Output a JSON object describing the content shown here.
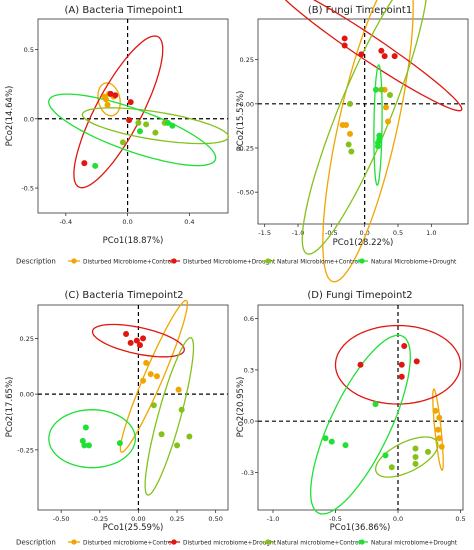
{
  "colors": {
    "disturbed_control": "#f0a500",
    "disturbed_drought": "#e0160f",
    "natural_control": "#84c21a",
    "natural_drought": "#1fe035"
  },
  "chart_data": [
    {
      "type": "scatter",
      "title": "(A) Bacteria Timepoint1",
      "xlabel": "PCo1(18.87%)",
      "ylabel": "PCo2(14.64%)",
      "xlim": [
        -0.58,
        0.65
      ],
      "ylim": [
        -0.68,
        0.72
      ],
      "xticks": [
        -0.4,
        0,
        0.4
      ],
      "xtick_labels": [
        "-0.4",
        "0.0",
        "0.4"
      ],
      "yticks": [
        -0.5,
        0,
        0.5
      ],
      "ytick_labels": [
        "-0.5",
        "0.0",
        "0.5"
      ],
      "series": [
        {
          "key": "disturbed_control",
          "points": [
            [
              -0.14,
              0.14
            ],
            [
              -0.12,
              0.18
            ],
            [
              -0.09,
              0.16
            ],
            [
              -0.13,
              0.1
            ],
            [
              -0.15,
              0.16
            ]
          ],
          "ellipse": {
            "cx": -0.12,
            "cy": 0.14,
            "rx": 0.07,
            "ry": 0.12,
            "angle": 10
          }
        },
        {
          "key": "disturbed_drought",
          "points": [
            [
              -0.11,
              0.18
            ],
            [
              -0.08,
              0.17
            ],
            [
              0.02,
              0.12
            ],
            [
              0.01,
              -0.01
            ],
            [
              -0.28,
              -0.32
            ]
          ],
          "ellipse": {
            "cx": -0.06,
            "cy": 0.05,
            "rx": 0.6,
            "ry": 0.15,
            "angle": 65
          }
        },
        {
          "key": "natural_control",
          "points": [
            [
              0.07,
              -0.03
            ],
            [
              0.12,
              -0.04
            ],
            [
              0.18,
              -0.1
            ],
            [
              0.24,
              -0.03
            ],
            [
              -0.03,
              -0.17
            ]
          ],
          "ellipse": {
            "cx": 0.18,
            "cy": -0.05,
            "rx": 0.48,
            "ry": 0.1,
            "angle": -10
          }
        },
        {
          "key": "natural_drought",
          "points": [
            [
              0.26,
              -0.03
            ],
            [
              0.29,
              -0.05
            ],
            [
              -0.21,
              -0.34
            ],
            [
              0.08,
              -0.09
            ]
          ],
          "ellipse": {
            "cx": 0.03,
            "cy": -0.08,
            "rx": 0.58,
            "ry": 0.15,
            "angle": -22
          }
        }
      ]
    },
    {
      "type": "scatter",
      "title": "(B) Fungi Timepoint1",
      "xlabel": "PCo1(28.22%)",
      "ylabel": "PCo2(15.57%)",
      "xlim": [
        -1.6,
        1.55
      ],
      "ylim": [
        -0.68,
        0.48
      ],
      "xticks": [
        -1.5,
        -1.0,
        -0.5,
        0,
        0.5,
        1.0
      ],
      "xtick_labels": [
        "-1.5",
        "-1.0",
        "-0.5",
        "0.0",
        "0.5",
        "1.0"
      ],
      "yticks": [
        -0.5,
        -0.25,
        0,
        0.25
      ],
      "ytick_labels": [
        "-0.50",
        "-0.25",
        "0.00",
        "0.25"
      ],
      "series": [
        {
          "key": "disturbed_control",
          "points": [
            [
              -0.33,
              -0.12
            ],
            [
              -0.28,
              -0.12
            ],
            [
              -0.22,
              -0.17
            ],
            [
              0.32,
              -0.02
            ],
            [
              0.3,
              0.08
            ],
            [
              0.35,
              -0.1
            ]
          ],
          "ellipse": {
            "cx": 0.05,
            "cy": -0.12,
            "rx": 1.05,
            "ry": 0.38,
            "angle": 55
          }
        },
        {
          "key": "disturbed_drought",
          "points": [
            [
              -0.3,
              0.37
            ],
            [
              -0.3,
              0.33
            ],
            [
              0.25,
              0.3
            ],
            [
              0.45,
              0.27
            ],
            [
              0.3,
              0.27
            ],
            [
              -0.05,
              0.28
            ]
          ],
          "ellipse": {
            "cx": 0.05,
            "cy": 0.32,
            "rx": 1.45,
            "ry": 0.08,
            "angle": -14
          }
        },
        {
          "key": "natural_control",
          "points": [
            [
              -0.22,
              0.0
            ],
            [
              -0.24,
              -0.23
            ],
            [
              -0.2,
              -0.27
            ],
            [
              0.38,
              0.05
            ],
            [
              0.25,
              0.08
            ]
          ],
          "ellipse": {
            "cx": 0.0,
            "cy": -0.05,
            "rx": 1.2,
            "ry": 0.28,
            "angle": 40
          }
        },
        {
          "key": "natural_drought",
          "points": [
            [
              0.17,
              0.08
            ],
            [
              0.22,
              -0.2
            ],
            [
              0.2,
              -0.22
            ],
            [
              0.22,
              -0.18
            ],
            [
              0.2,
              -0.24
            ]
          ],
          "ellipse": {
            "cx": 0.2,
            "cy": -0.12,
            "rx": 0.34,
            "ry": 0.06,
            "angle": 88
          }
        }
      ]
    },
    {
      "type": "scatter",
      "title": "(C) Bacteria Timepoint2",
      "xlabel": "PCo1(25.59%)",
      "ylabel": "PCo2(17.65%)",
      "xlim": [
        -0.65,
        0.58
      ],
      "ylim": [
        -0.52,
        0.4
      ],
      "xticks": [
        -0.5,
        -0.25,
        0,
        0.25,
        0.5
      ],
      "xtick_labels": [
        "-0.50",
        "-0.25",
        "0.00",
        "0.25",
        "0.50"
      ],
      "yticks": [
        -0.25,
        0,
        0.25
      ],
      "ytick_labels": [
        "-0.25",
        "0.00",
        "0.25"
      ],
      "series": [
        {
          "key": "disturbed_control",
          "points": [
            [
              0.05,
              0.14
            ],
            [
              0.08,
              0.09
            ],
            [
              0.12,
              0.08
            ],
            [
              0.26,
              0.02
            ],
            [
              0.03,
              0.06
            ]
          ],
          "ellipse": {
            "cx": 0.1,
            "cy": 0.08,
            "rx": 0.4,
            "ry": 0.055,
            "angle": 58
          }
        },
        {
          "key": "disturbed_drought",
          "points": [
            [
              -0.08,
              0.27
            ],
            [
              -0.05,
              0.23
            ],
            [
              -0.01,
              0.24
            ],
            [
              0.03,
              0.25
            ],
            [
              0.01,
              0.22
            ]
          ],
          "ellipse": {
            "cx": 0.0,
            "cy": 0.24,
            "rx": 0.3,
            "ry": 0.06,
            "angle": -8
          }
        },
        {
          "key": "natural_control",
          "points": [
            [
              0.1,
              -0.05
            ],
            [
              0.15,
              -0.18
            ],
            [
              0.28,
              -0.07
            ],
            [
              0.33,
              -0.19
            ],
            [
              0.25,
              -0.23
            ]
          ],
          "ellipse": {
            "cx": 0.2,
            "cy": -0.1,
            "rx": 0.38,
            "ry": 0.07,
            "angle": 68
          }
        },
        {
          "key": "natural_drought",
          "points": [
            [
              -0.34,
              -0.15
            ],
            [
              -0.36,
              -0.21
            ],
            [
              -0.35,
              -0.23
            ],
            [
              -0.32,
              -0.23
            ],
            [
              -0.12,
              -0.22
            ]
          ],
          "ellipse": {
            "cx": -0.3,
            "cy": -0.2,
            "rx": 0.28,
            "ry": 0.13,
            "angle": 0
          }
        }
      ]
    },
    {
      "type": "scatter",
      "title": "(D) Fungi Timepoint2",
      "xlabel": "PCo1(36.86%)",
      "ylabel": "PCo2(20.95%)",
      "xlim": [
        -1.12,
        0.52
      ],
      "ylim": [
        -0.52,
        0.68
      ],
      "xticks": [
        -1.0,
        -0.5,
        0,
        0.5
      ],
      "xtick_labels": [
        "-1.0",
        "-0.5",
        "0.0",
        "0.5"
      ],
      "yticks": [
        -0.3,
        0,
        0.3,
        0.6
      ],
      "ytick_labels": [
        "-0.3",
        "0.0",
        "0.3",
        "0.6"
      ],
      "series": [
        {
          "key": "disturbed_control",
          "points": [
            [
              0.3,
              0.06
            ],
            [
              0.33,
              0.02
            ],
            [
              0.32,
              -0.05
            ],
            [
              0.33,
              -0.1
            ],
            [
              0.35,
              -0.15
            ]
          ],
          "ellipse": {
            "cx": 0.32,
            "cy": -0.05,
            "rx": 0.24,
            "ry": 0.025,
            "angle": -82
          }
        },
        {
          "key": "disturbed_drought",
          "points": [
            [
              -0.3,
              0.33
            ],
            [
              0.05,
              0.44
            ],
            [
              0.15,
              0.35
            ],
            [
              0.03,
              0.26
            ],
            [
              0.03,
              0.33
            ]
          ],
          "ellipse": {
            "cx": 0.0,
            "cy": 0.33,
            "rx": 0.5,
            "ry": 0.23,
            "angle": 0
          }
        },
        {
          "key": "natural_control",
          "points": [
            [
              0.14,
              -0.16
            ],
            [
              0.14,
              -0.21
            ],
            [
              0.14,
              -0.25
            ],
            [
              -0.05,
              -0.27
            ],
            [
              0.24,
              -0.18
            ]
          ],
          "ellipse": {
            "cx": 0.07,
            "cy": -0.21,
            "rx": 0.26,
            "ry": 0.09,
            "angle": 18
          }
        },
        {
          "key": "natural_drought",
          "points": [
            [
              -0.58,
              -0.1
            ],
            [
              -0.53,
              -0.12
            ],
            [
              -0.42,
              -0.14
            ],
            [
              -0.18,
              0.1
            ],
            [
              -0.1,
              -0.2
            ]
          ],
          "ellipse": {
            "cx": -0.3,
            "cy": -0.02,
            "rx": 0.62,
            "ry": 0.22,
            "angle": 55
          }
        }
      ]
    }
  ],
  "legends": [
    {
      "title": "Description",
      "items": [
        {
          "key": "disturbed_control",
          "label": "Disturbed Microbiome+Control"
        },
        {
          "key": "disturbed_drought",
          "label": "Disturbed Microbiome+Drought"
        },
        {
          "key": "natural_control",
          "label": "Natural Microbiome+Control"
        },
        {
          "key": "natural_drought",
          "label": "Natural Microbiome+Drought"
        }
      ]
    },
    {
      "title": "Description",
      "items": [
        {
          "key": "disturbed_control",
          "label": "Disturbed microbiome+Control"
        },
        {
          "key": "disturbed_drought",
          "label": "Disturbed microbiome+Drought"
        },
        {
          "key": "natural_control",
          "label": "Natural microbiome+Control"
        },
        {
          "key": "natural_drought",
          "label": "Natural microbiome+Drought"
        }
      ]
    }
  ]
}
